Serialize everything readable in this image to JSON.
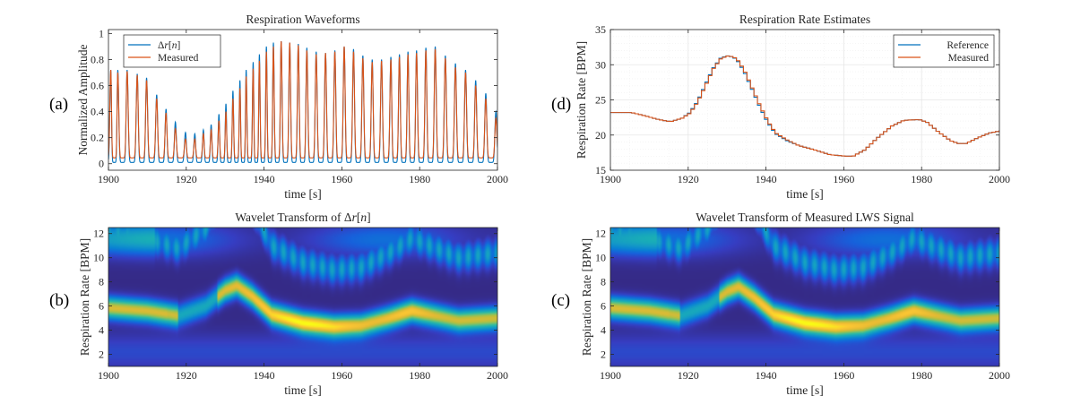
{
  "panel_labels": {
    "a": "(a)",
    "b": "(b)",
    "c": "(c)",
    "d": "(d)"
  },
  "colors": {
    "reference": "#0072BD",
    "measured": "#D95319",
    "grid": "#e6e6e6",
    "axis": "#262626"
  },
  "chart_data": [
    {
      "id": "a",
      "type": "line",
      "title": "Respiration Waveforms",
      "xlabel": "time [s]",
      "ylabel": "Normalized Amplitude",
      "xlim": [
        1900,
        2000
      ],
      "ylim": [
        -0.05,
        1.03
      ],
      "xticks": [
        1900,
        1920,
        1940,
        1960,
        1980,
        2000
      ],
      "yticks": [
        0,
        0.2,
        0.4,
        0.6,
        0.8,
        1
      ],
      "ytick_labels": [
        "0",
        "0.2",
        "0.4",
        "0.6",
        "0.8",
        "1"
      ],
      "legend": {
        "position": "top-left",
        "entries": [
          "Δr[n]",
          "Measured"
        ]
      },
      "series": [
        {
          "name": "Δr[n]",
          "baseline": 0.01,
          "peaks": [
            [
              1900.6,
              0.72
            ],
            [
              1902.4,
              0.72
            ],
            [
              1904.8,
              0.72
            ],
            [
              1907.4,
              0.69
            ],
            [
              1909.8,
              0.66
            ],
            [
              1912.4,
              0.53
            ],
            [
              1914.8,
              0.42
            ],
            [
              1917.2,
              0.32
            ],
            [
              1919.8,
              0.24
            ],
            [
              1922.2,
              0.23
            ],
            [
              1924.4,
              0.26
            ],
            [
              1926.4,
              0.3
            ],
            [
              1928.4,
              0.38
            ],
            [
              1930.2,
              0.46
            ],
            [
              1932.0,
              0.56
            ],
            [
              1933.8,
              0.64
            ],
            [
              1935.4,
              0.72
            ],
            [
              1937.2,
              0.78
            ],
            [
              1938.8,
              0.84
            ],
            [
              1940.6,
              0.9
            ],
            [
              1942.4,
              0.93
            ],
            [
              1944.4,
              0.94
            ],
            [
              1946.6,
              0.93
            ],
            [
              1948.8,
              0.92
            ],
            [
              1951.0,
              0.89
            ],
            [
              1953.4,
              0.86
            ],
            [
              1955.8,
              0.85
            ],
            [
              1958.2,
              0.87
            ],
            [
              1960.6,
              0.9
            ],
            [
              1963.0,
              0.88
            ],
            [
              1965.4,
              0.83
            ],
            [
              1967.8,
              0.8
            ],
            [
              1970.2,
              0.8
            ],
            [
              1972.6,
              0.82
            ],
            [
              1974.8,
              0.84
            ],
            [
              1977.0,
              0.86
            ],
            [
              1979.2,
              0.87
            ],
            [
              1981.6,
              0.89
            ],
            [
              1984.0,
              0.9
            ],
            [
              1986.6,
              0.83
            ],
            [
              1989.2,
              0.77
            ],
            [
              1991.8,
              0.72
            ],
            [
              1994.4,
              0.64
            ],
            [
              1997.0,
              0.54
            ],
            [
              1999.6,
              0.4
            ]
          ]
        },
        {
          "name": "Measured",
          "baseline": 0.045,
          "peaks": [
            [
              1900.6,
              0.72
            ],
            [
              1902.4,
              0.7
            ],
            [
              1904.8,
              0.71
            ],
            [
              1907.4,
              0.68
            ],
            [
              1909.8,
              0.64
            ],
            [
              1912.4,
              0.5
            ],
            [
              1914.8,
              0.39
            ],
            [
              1917.2,
              0.27
            ],
            [
              1919.8,
              0.19
            ],
            [
              1922.2,
              0.19
            ],
            [
              1924.4,
              0.23
            ],
            [
              1926.4,
              0.26
            ],
            [
              1928.4,
              0.33
            ],
            [
              1930.2,
              0.4
            ],
            [
              1932.0,
              0.5
            ],
            [
              1933.8,
              0.58
            ],
            [
              1935.4,
              0.67
            ],
            [
              1937.2,
              0.73
            ],
            [
              1938.8,
              0.79
            ],
            [
              1940.6,
              0.86
            ],
            [
              1942.4,
              0.9
            ],
            [
              1944.4,
              0.94
            ],
            [
              1946.6,
              0.93
            ],
            [
              1948.8,
              0.91
            ],
            [
              1951.0,
              0.87
            ],
            [
              1953.4,
              0.84
            ],
            [
              1955.8,
              0.85
            ],
            [
              1958.2,
              0.86
            ],
            [
              1960.6,
              0.9
            ],
            [
              1963.0,
              0.86
            ],
            [
              1965.4,
              0.81
            ],
            [
              1967.8,
              0.78
            ],
            [
              1970.2,
              0.79
            ],
            [
              1972.6,
              0.8
            ],
            [
              1974.8,
              0.82
            ],
            [
              1977.0,
              0.84
            ],
            [
              1979.2,
              0.85
            ],
            [
              1981.6,
              0.87
            ],
            [
              1984.0,
              0.88
            ],
            [
              1986.6,
              0.81
            ],
            [
              1989.2,
              0.74
            ],
            [
              1991.8,
              0.7
            ],
            [
              1994.4,
              0.6
            ],
            [
              1997.0,
              0.5
            ],
            [
              1999.6,
              0.35
            ]
          ]
        }
      ]
    },
    {
      "id": "d",
      "type": "line",
      "title": "Respiration Rate Estimates",
      "xlabel": "time [s]",
      "ylabel": "Respiration Rate [BPM]",
      "xlim": [
        1900,
        2000
      ],
      "ylim": [
        15,
        35
      ],
      "xticks": [
        1900,
        1920,
        1940,
        1960,
        1980,
        2000
      ],
      "yticks": [
        15,
        20,
        25,
        30,
        35
      ],
      "grid": true,
      "legend": {
        "position": "top-right",
        "entries": [
          "Reference",
          "Measured"
        ]
      },
      "series": [
        {
          "name": "Reference",
          "points": [
            [
              1900,
              23.2
            ],
            [
              1905,
              23.2
            ],
            [
              1908,
              22.8
            ],
            [
              1912,
              22.2
            ],
            [
              1915,
              21.9
            ],
            [
              1918,
              22.4
            ],
            [
              1920,
              23.2
            ],
            [
              1922,
              24.8
            ],
            [
              1924,
              27.2
            ],
            [
              1926,
              29.5
            ],
            [
              1928,
              31.0
            ],
            [
              1930,
              31.3
            ],
            [
              1932,
              30.8
            ],
            [
              1934,
              29.0
            ],
            [
              1936,
              26.5
            ],
            [
              1938,
              24.0
            ],
            [
              1940,
              21.8
            ],
            [
              1942,
              20.2
            ],
            [
              1945,
              19.2
            ],
            [
              1948,
              18.5
            ],
            [
              1952,
              17.9
            ],
            [
              1956,
              17.2
            ],
            [
              1960,
              17.0
            ],
            [
              1962,
              17.0
            ],
            [
              1965,
              17.9
            ],
            [
              1968,
              19.5
            ],
            [
              1972,
              21.3
            ],
            [
              1975,
              22.1
            ],
            [
              1979,
              22.2
            ],
            [
              1981,
              21.8
            ],
            [
              1984,
              20.4
            ],
            [
              1987,
              19.2
            ],
            [
              1989,
              18.8
            ],
            [
              1991,
              18.8
            ],
            [
              1994,
              19.6
            ],
            [
              1997,
              20.3
            ],
            [
              2000,
              20.6
            ]
          ]
        },
        {
          "name": "Measured",
          "points": [
            [
              1900,
              23.2
            ],
            [
              1905,
              23.2
            ],
            [
              1908,
              22.8
            ],
            [
              1912,
              22.2
            ],
            [
              1915,
              21.9
            ],
            [
              1918,
              22.4
            ],
            [
              1920,
              23.1
            ],
            [
              1922,
              24.7
            ],
            [
              1924,
              27.0
            ],
            [
              1926,
              29.4
            ],
            [
              1928,
              30.9
            ],
            [
              1930,
              31.3
            ],
            [
              1932,
              30.9
            ],
            [
              1934,
              29.2
            ],
            [
              1936,
              26.7
            ],
            [
              1938,
              24.2
            ],
            [
              1940,
              22.0
            ],
            [
              1942,
              20.3
            ],
            [
              1945,
              19.3
            ],
            [
              1948,
              18.5
            ],
            [
              1952,
              17.9
            ],
            [
              1956,
              17.2
            ],
            [
              1960,
              17.0
            ],
            [
              1962,
              17.0
            ],
            [
              1965,
              17.9
            ],
            [
              1968,
              19.5
            ],
            [
              1972,
              21.3
            ],
            [
              1975,
              22.1
            ],
            [
              1979,
              22.2
            ],
            [
              1981,
              21.8
            ],
            [
              1984,
              20.4
            ],
            [
              1987,
              19.2
            ],
            [
              1989,
              18.8
            ],
            [
              1991,
              18.8
            ],
            [
              1994,
              19.6
            ],
            [
              1997,
              20.3
            ],
            [
              2000,
              20.6
            ]
          ]
        }
      ]
    },
    {
      "id": "b",
      "type": "heatmap",
      "title": "Wavelet Transform of Δr[n]",
      "xlabel": "time [s]",
      "ylabel": "Respiration Rate [BPM]",
      "xlim": [
        1900,
        2000
      ],
      "ylim": [
        1.0,
        12.5
      ],
      "xticks": [
        1900,
        1920,
        1940,
        1960,
        1980,
        2000
      ],
      "yticks": [
        2,
        4,
        6,
        8,
        10,
        12
      ],
      "colormap": "parula",
      "ridge": [
        [
          1900,
          5.85
        ],
        [
          1910,
          5.6
        ],
        [
          1918,
          5.2
        ],
        [
          1925,
          6.0
        ],
        [
          1930,
          7.3
        ],
        [
          1933,
          7.7
        ],
        [
          1937,
          6.8
        ],
        [
          1942,
          5.3
        ],
        [
          1950,
          4.6
        ],
        [
          1958,
          4.3
        ],
        [
          1965,
          4.4
        ],
        [
          1972,
          5.0
        ],
        [
          1978,
          5.6
        ],
        [
          1984,
          5.2
        ],
        [
          1990,
          4.8
        ],
        [
          2000,
          5.0
        ]
      ]
    },
    {
      "id": "c",
      "type": "heatmap",
      "title": "Wavelet Transform of Measured LWS Signal",
      "xlabel": "time [s]",
      "ylabel": "Respiration Rate [BPM]",
      "xlim": [
        1900,
        2000
      ],
      "ylim": [
        1.0,
        12.5
      ],
      "xticks": [
        1900,
        1920,
        1940,
        1960,
        1980,
        2000
      ],
      "yticks": [
        2,
        4,
        6,
        8,
        10,
        12
      ],
      "colormap": "parula",
      "ridge": [
        [
          1900,
          5.85
        ],
        [
          1910,
          5.6
        ],
        [
          1918,
          5.2
        ],
        [
          1925,
          6.0
        ],
        [
          1930,
          7.2
        ],
        [
          1933,
          7.6
        ],
        [
          1937,
          6.7
        ],
        [
          1942,
          5.3
        ],
        [
          1950,
          4.6
        ],
        [
          1958,
          4.3
        ],
        [
          1965,
          4.4
        ],
        [
          1972,
          5.0
        ],
        [
          1978,
          5.6
        ],
        [
          1984,
          5.2
        ],
        [
          1990,
          4.8
        ],
        [
          2000,
          5.0
        ]
      ]
    }
  ]
}
